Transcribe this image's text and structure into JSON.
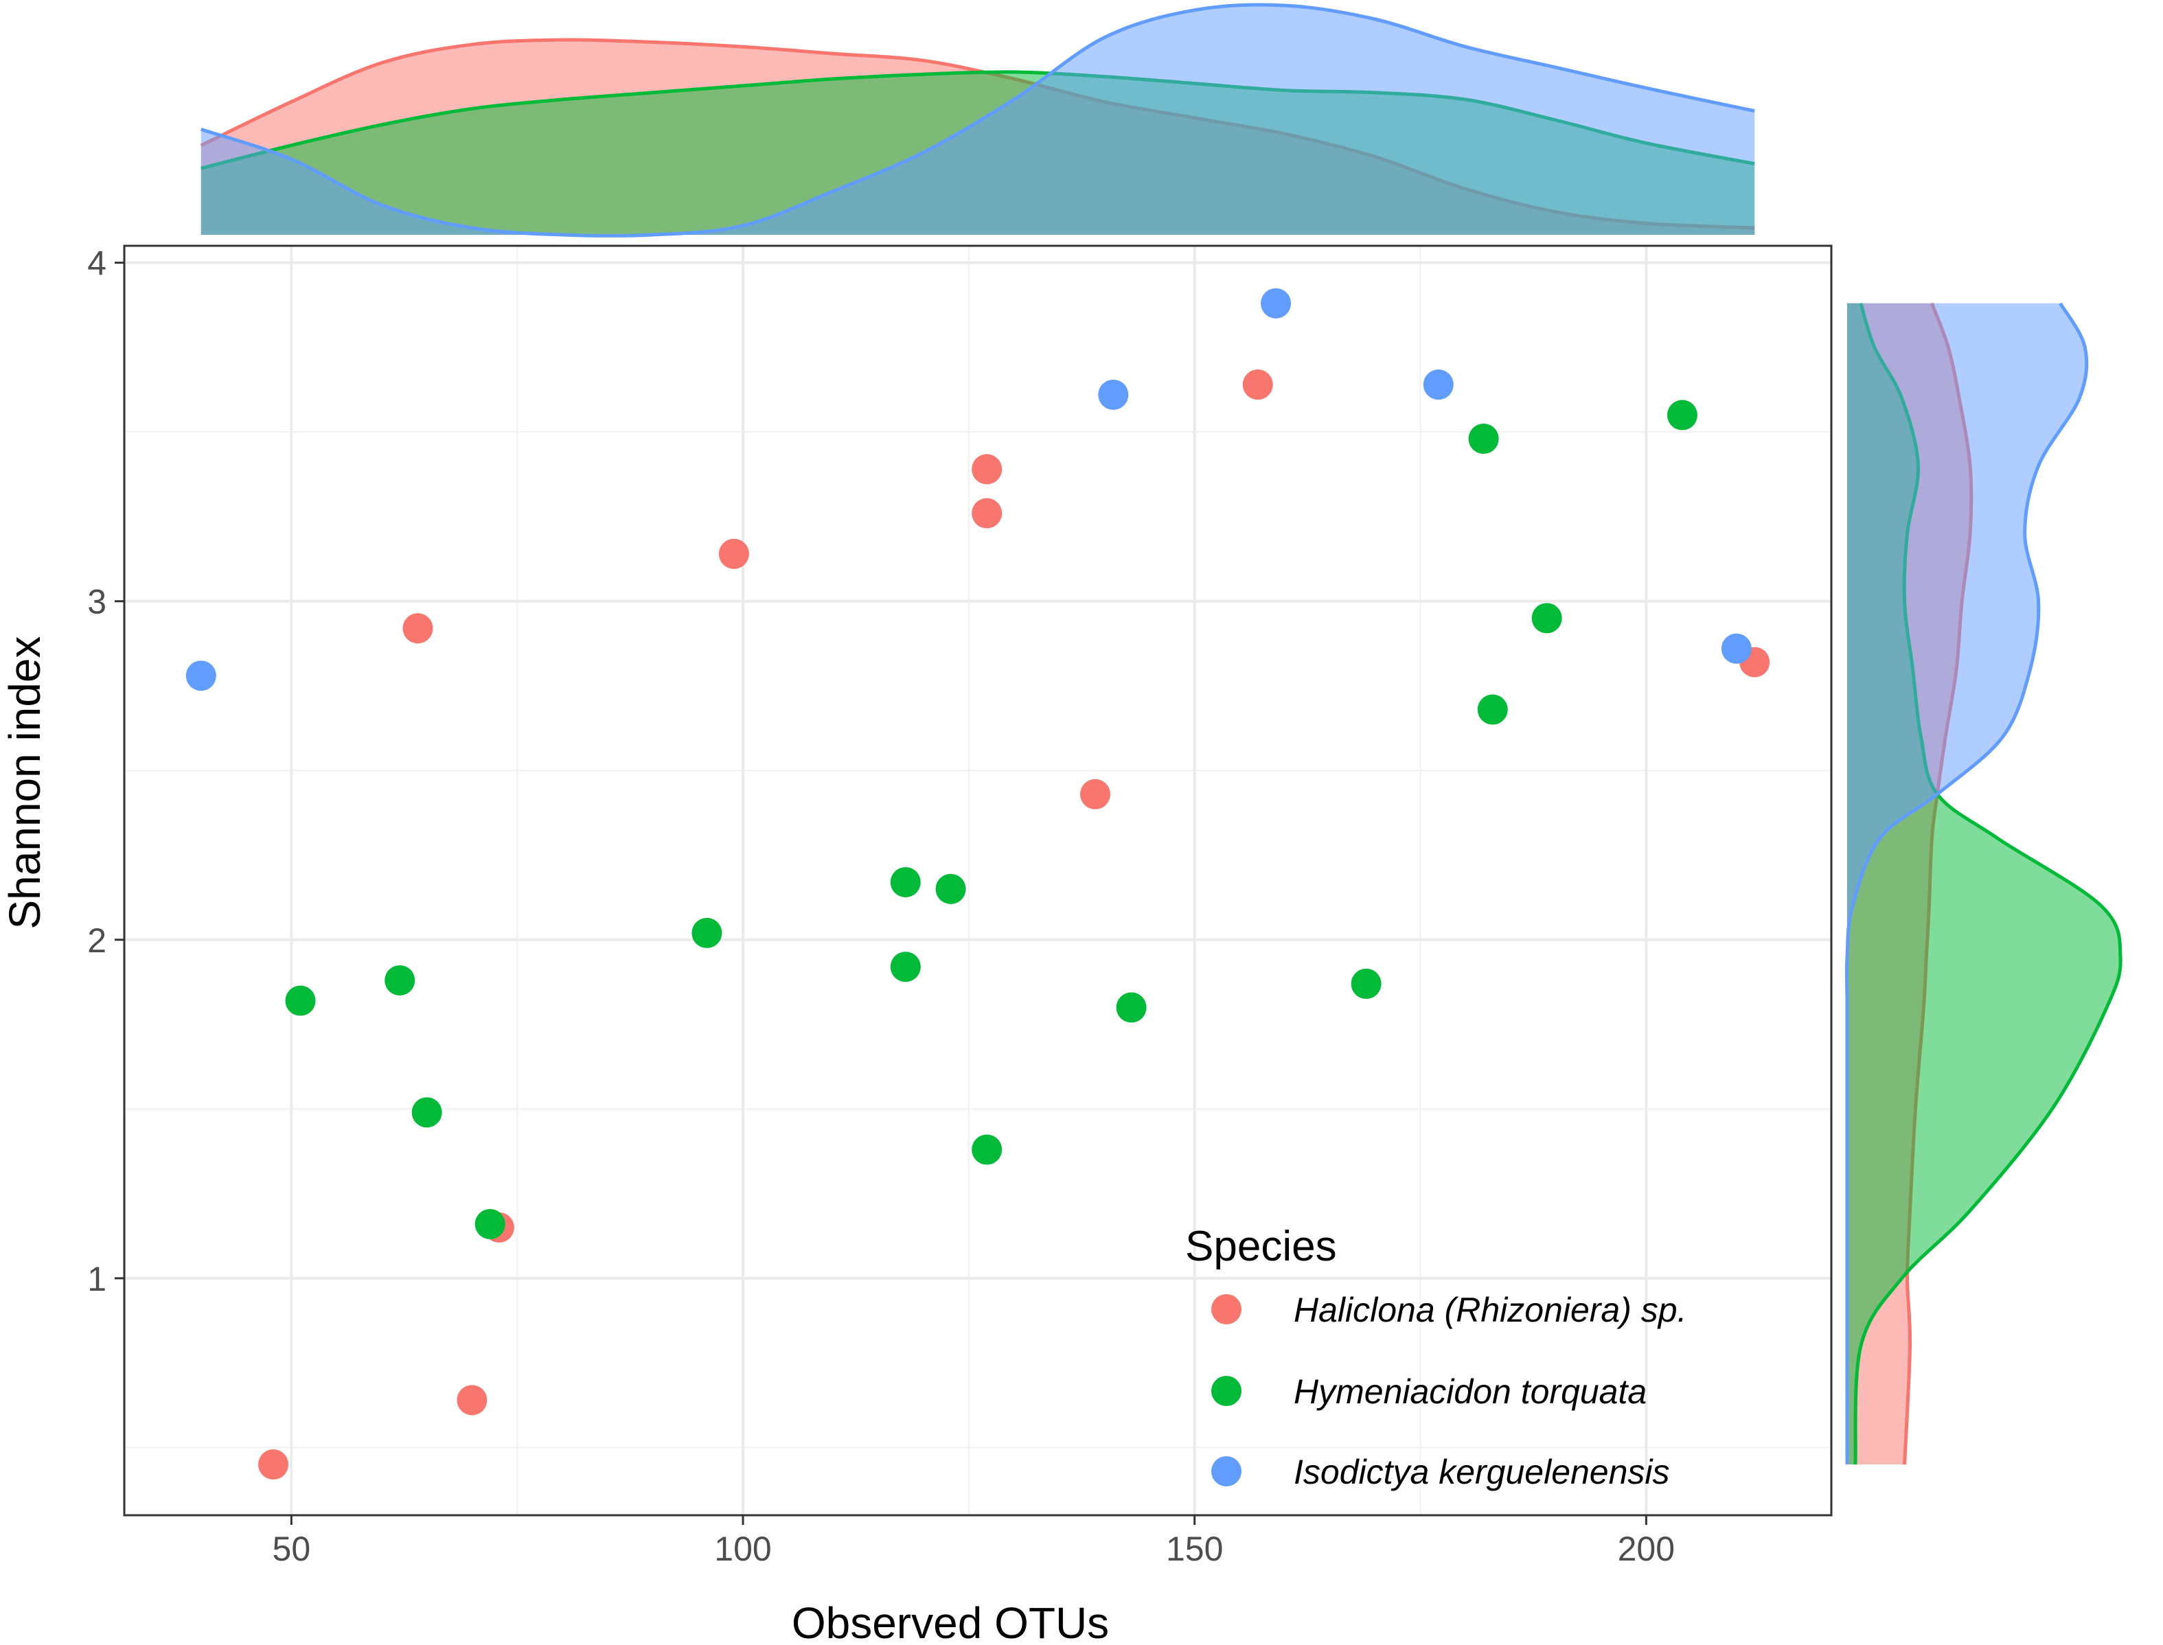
{
  "chart_data": {
    "type": "scatter",
    "title": "",
    "xlabel": "Observed OTUs",
    "ylabel": "Shannon index",
    "xlim": [
      31.5,
      220.5
    ],
    "ylim": [
      0.3,
      4.05
    ],
    "xticks": [
      50,
      100,
      150,
      200
    ],
    "yticks": [
      1,
      2,
      3,
      4
    ],
    "grid": true,
    "legend": {
      "title": "Species",
      "position": "bottom-right"
    },
    "series": [
      {
        "name": "Haliclona  (Rhizoniera) sp.",
        "color": "#F8766D",
        "points": [
          {
            "x": 48,
            "y": 0.45
          },
          {
            "x": 70,
            "y": 0.64
          },
          {
            "x": 73,
            "y": 1.15
          },
          {
            "x": 64,
            "y": 2.92
          },
          {
            "x": 99,
            "y": 3.14
          },
          {
            "x": 127,
            "y": 3.39
          },
          {
            "x": 127,
            "y": 3.26
          },
          {
            "x": 139,
            "y": 2.43
          },
          {
            "x": 157,
            "y": 3.64
          },
          {
            "x": 212,
            "y": 2.82
          }
        ]
      },
      {
        "name": "Hymeniacidon torquata",
        "color": "#00BA38",
        "points": [
          {
            "x": 51,
            "y": 1.82
          },
          {
            "x": 62,
            "y": 1.88
          },
          {
            "x": 65,
            "y": 1.49
          },
          {
            "x": 72,
            "y": 1.16
          },
          {
            "x": 96,
            "y": 2.02
          },
          {
            "x": 118,
            "y": 2.17
          },
          {
            "x": 118,
            "y": 1.92
          },
          {
            "x": 123,
            "y": 2.15
          },
          {
            "x": 127,
            "y": 1.38
          },
          {
            "x": 143,
            "y": 1.8
          },
          {
            "x": 169,
            "y": 1.87
          },
          {
            "x": 182,
            "y": 3.48
          },
          {
            "x": 183,
            "y": 2.68
          },
          {
            "x": 189,
            "y": 2.95
          },
          {
            "x": 204,
            "y": 3.55
          }
        ]
      },
      {
        "name": "Isodictya kerguelenensis",
        "color": "#619CFF",
        "points": [
          {
            "x": 40,
            "y": 2.78
          },
          {
            "x": 141,
            "y": 3.61
          },
          {
            "x": 159,
            "y": 3.88
          },
          {
            "x": 177,
            "y": 3.64
          },
          {
            "x": 210,
            "y": 2.86
          }
        ]
      }
    ],
    "marginal_x_density": {
      "x": [
        40,
        50,
        60,
        70,
        80,
        90,
        100,
        110,
        120,
        130,
        140,
        150,
        160,
        170,
        180,
        190,
        200,
        212
      ],
      "series": [
        {
          "name": "Haliclona  (Rhizoniera) sp.",
          "density": [
            0.39,
            0.58,
            0.75,
            0.83,
            0.85,
            0.84,
            0.82,
            0.79,
            0.76,
            0.68,
            0.58,
            0.51,
            0.44,
            0.34,
            0.2,
            0.1,
            0.05,
            0.03
          ]
        },
        {
          "name": "Hymeniacidon torquata",
          "density": [
            0.29,
            0.39,
            0.48,
            0.55,
            0.59,
            0.62,
            0.65,
            0.68,
            0.7,
            0.71,
            0.69,
            0.66,
            0.63,
            0.62,
            0.59,
            0.5,
            0.4,
            0.31
          ]
        },
        {
          "name": "Isodictya kerguelenensis",
          "density": [
            0.46,
            0.33,
            0.13,
            0.03,
            0.0,
            0.0,
            0.04,
            0.19,
            0.36,
            0.59,
            0.86,
            0.98,
            1.0,
            0.94,
            0.82,
            0.73,
            0.64,
            0.54
          ]
        }
      ]
    },
    "marginal_y_density": {
      "y": [
        0.45,
        0.8,
        1.0,
        1.2,
        1.5,
        1.8,
        1.95,
        2.1,
        2.3,
        2.43,
        2.6,
        2.8,
        3.0,
        3.2,
        3.4,
        3.6,
        3.75,
        3.88
      ],
      "series": [
        {
          "name": "Haliclona  (Rhizoniera) sp.",
          "density": [
            0.21,
            0.23,
            0.22,
            0.23,
            0.25,
            0.28,
            0.29,
            0.3,
            0.31,
            0.33,
            0.36,
            0.4,
            0.42,
            0.45,
            0.45,
            0.41,
            0.37,
            0.31
          ]
        },
        {
          "name": "Hymeniacidon torquata",
          "density": [
            0.03,
            0.05,
            0.2,
            0.45,
            0.75,
            0.95,
            1.0,
            0.93,
            0.55,
            0.33,
            0.27,
            0.24,
            0.21,
            0.22,
            0.26,
            0.2,
            0.1,
            0.05
          ]
        },
        {
          "name": "Isodictya kerguelenensis",
          "density": [
            0.0,
            0.0,
            0.0,
            0.0,
            0.0,
            0.0,
            0.0,
            0.02,
            0.12,
            0.33,
            0.57,
            0.67,
            0.7,
            0.65,
            0.7,
            0.85,
            0.87,
            0.78
          ]
        }
      ]
    }
  }
}
